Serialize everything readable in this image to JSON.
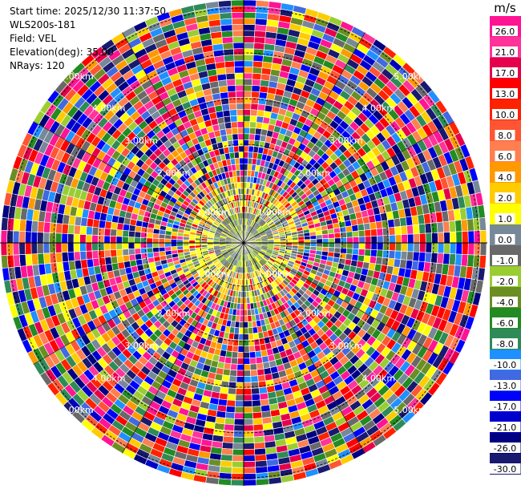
{
  "header": {
    "start_time": "Start time: 2025/12/30 11:37:50",
    "instrument": "WLS200s-181",
    "field": "Field: VEL",
    "elevation": "Elevation(deg): 35.00",
    "nrays": "NRays: 120"
  },
  "chart_data": {
    "type": "heatmap",
    "projection": "polar",
    "field": "VEL",
    "units": "m/s",
    "elevation_deg": 35.0,
    "n_rays": 120,
    "range_ring_labels": [
      "1.00km",
      "2.00km",
      "3.00km",
      "4.00km",
      "5.00km"
    ],
    "colorbar": {
      "label": "m/s",
      "ticks": [
        "26.0",
        "21.0",
        "17.0",
        "13.0",
        "10.0",
        "8.0",
        "6.0",
        "4.0",
        "2.0",
        "1.0",
        "0.0",
        "-1.0",
        "-2.0",
        "-4.0",
        "-6.0",
        "-8.0",
        "-10.0",
        "-13.0",
        "-17.0",
        "-21.0",
        "-26.0",
        "-30.0"
      ],
      "colors": [
        "#ff1493",
        "#ff3399",
        "#e6004c",
        "#ff0000",
        "#ff2200",
        "#ff5533",
        "#ff7f50",
        "#ff9900",
        "#ffcc00",
        "#ffff00",
        "#778899",
        "#696969",
        "#9acd32",
        "#6b8e23",
        "#228b22",
        "#2e8b57",
        "#1e90ff",
        "#4169e1",
        "#0000ff",
        "#0000cd",
        "#000080",
        "#191970"
      ]
    }
  }
}
